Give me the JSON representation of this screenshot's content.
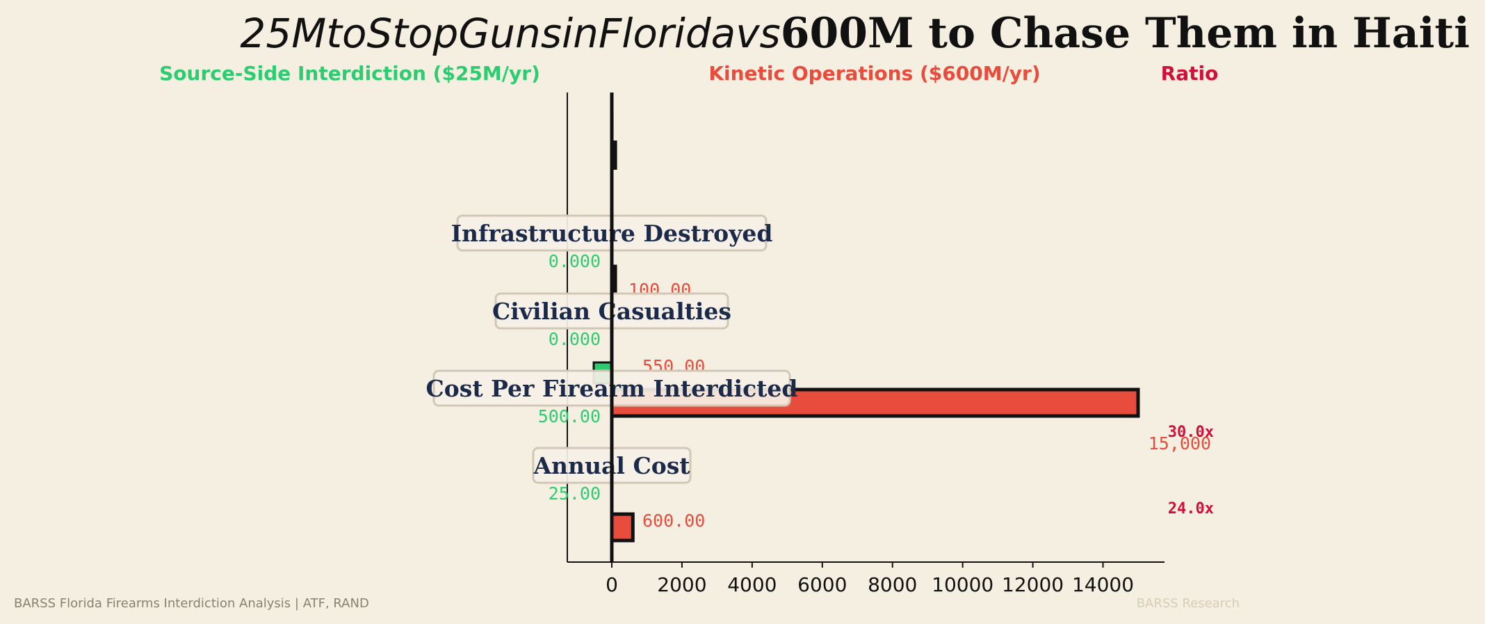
{
  "title": {
    "italic_part": "25MtoStopGunsinFloridavs",
    "bold_part": "600M to Chase Them in Haiti"
  },
  "headers": {
    "left": "Source-Side Interdiction ($25M/yr)",
    "middle": "Kinetic Operations ($600M/yr)",
    "right": "Ratio"
  },
  "colors": {
    "background": "#f5efe2",
    "source_side": "#2ecc71",
    "kinetic": "#e74c3c",
    "ratio": "#d0103a",
    "category_text": "#1c2a4a"
  },
  "footer": {
    "left": "BARSS Florida Firearms Interdiction Analysis | ATF, RAND",
    "right": "BARSS Research"
  },
  "chart_data": {
    "type": "bar",
    "orientation": "horizontal",
    "categories": [
      "Infrastructure Destroyed",
      "Civilian Casualties",
      "Cost Per Firearm Interdicted",
      "Annual Cost"
    ],
    "series": [
      {
        "name": "Source-Side Interdiction ($25M/yr)",
        "values": [
          0,
          0,
          500,
          25
        ],
        "value_labels": [
          "0.000",
          "0.000",
          "500.00",
          "25.00"
        ]
      },
      {
        "name": "Kinetic Operations ($600M/yr)",
        "values": [
          100,
          550,
          15000,
          600
        ],
        "value_labels": [
          "100.00",
          "550.00",
          "15,000",
          "600.00"
        ]
      }
    ],
    "ratios": [
      "",
      "",
      "30.0x",
      "24.0x"
    ],
    "top_partial_values": [
      50,
      150
    ],
    "x_ticks": [
      0,
      2000,
      4000,
      6000,
      8000,
      10000,
      12000,
      14000
    ],
    "xlim": [
      -1300,
      15900
    ],
    "grid": false
  }
}
